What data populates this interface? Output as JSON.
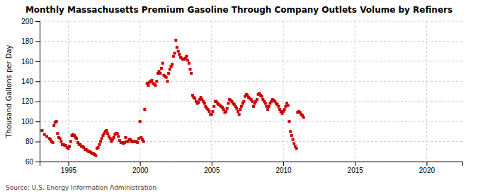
{
  "chart_data": {
    "type": "scatter",
    "title": "Monthly Massachusetts Premium Gasoline Through Company Outlets Volume by Refiners",
    "ylabel": "Thousand Gallons per Day",
    "annotation": "Source: U.S. Energy Information Administration",
    "color": "#cc0000",
    "marker": "square",
    "grid": true,
    "xlim": [
      1993.0,
      2022.5
    ],
    "ylim": [
      60,
      200
    ],
    "xticks": [
      1995,
      2000,
      2005,
      2010,
      2015,
      2020
    ],
    "yticks": [
      60,
      80,
      100,
      120,
      140,
      160,
      180,
      200
    ],
    "x": [
      1993.17,
      1993.33,
      1993.5,
      1993.67,
      1993.75,
      1993.83,
      1993.92,
      1994.0,
      1994.08,
      1994.17,
      1994.25,
      1994.33,
      1994.42,
      1994.5,
      1994.58,
      1994.67,
      1994.75,
      1994.83,
      1994.92,
      1995.0,
      1995.08,
      1995.17,
      1995.25,
      1995.33,
      1995.42,
      1995.5,
      1995.58,
      1995.67,
      1995.75,
      1995.83,
      1995.92,
      1996.0,
      1996.08,
      1996.17,
      1996.25,
      1996.33,
      1996.42,
      1996.5,
      1996.58,
      1996.67,
      1996.75,
      1996.83,
      1996.92,
      1997.0,
      1997.08,
      1997.17,
      1997.25,
      1997.33,
      1997.42,
      1997.5,
      1997.58,
      1997.67,
      1997.75,
      1997.83,
      1997.92,
      1998.0,
      1998.08,
      1998.17,
      1998.25,
      1998.33,
      1998.42,
      1998.5,
      1998.58,
      1998.67,
      1998.75,
      1998.83,
      1998.92,
      1999.0,
      1999.08,
      1999.17,
      1999.25,
      1999.33,
      1999.42,
      1999.5,
      1999.58,
      1999.67,
      1999.75,
      1999.83,
      1999.92,
      2000.0,
      2000.08,
      2000.17,
      2000.25,
      2000.33,
      2000.5,
      2000.58,
      2000.67,
      2000.75,
      2000.83,
      2000.92,
      2001.0,
      2001.08,
      2001.17,
      2001.25,
      2001.33,
      2001.42,
      2001.5,
      2001.58,
      2001.67,
      2001.75,
      2001.83,
      2001.92,
      2002.0,
      2002.08,
      2002.17,
      2002.25,
      2002.33,
      2002.42,
      2002.5,
      2002.58,
      2002.67,
      2002.75,
      2002.83,
      2002.92,
      2003.0,
      2003.08,
      2003.17,
      2003.25,
      2003.33,
      2003.42,
      2003.5,
      2003.58,
      2003.67,
      2003.75,
      2003.83,
      2003.92,
      2004.0,
      2004.08,
      2004.17,
      2004.25,
      2004.33,
      2004.42,
      2004.5,
      2004.58,
      2004.67,
      2004.75,
      2004.83,
      2004.92,
      2005.0,
      2005.08,
      2005.17,
      2005.25,
      2005.33,
      2005.42,
      2005.5,
      2005.58,
      2005.67,
      2005.75,
      2005.83,
      2005.92,
      2006.0,
      2006.08,
      2006.17,
      2006.25,
      2006.33,
      2006.42,
      2006.5,
      2006.58,
      2006.67,
      2006.75,
      2006.83,
      2006.92,
      2007.0,
      2007.08,
      2007.17,
      2007.25,
      2007.33,
      2007.42,
      2007.5,
      2007.58,
      2007.67,
      2007.75,
      2007.83,
      2007.92,
      2008.0,
      2008.08,
      2008.17,
      2008.25,
      2008.33,
      2008.42,
      2008.5,
      2008.58,
      2008.67,
      2008.75,
      2008.83,
      2008.92,
      2009.0,
      2009.08,
      2009.17,
      2009.25,
      2009.33,
      2009.42,
      2009.5,
      2009.58,
      2009.67,
      2009.75,
      2009.83,
      2009.92,
      2010.0,
      2010.08,
      2010.17,
      2010.25,
      2010.33,
      2010.42,
      2010.5,
      2010.58,
      2010.67,
      2010.75,
      2010.83,
      2010.92,
      2011.0,
      2011.08,
      2011.17,
      2011.25,
      2011.33,
      2011.42
    ],
    "values": [
      91,
      87,
      85,
      83,
      82,
      80,
      79,
      96,
      99,
      100,
      88,
      84,
      83,
      80,
      77,
      77,
      76,
      76,
      74,
      73,
      75,
      80,
      86,
      87,
      86,
      84,
      83,
      79,
      77,
      77,
      75,
      75,
      74,
      72,
      72,
      71,
      70,
      70,
      69,
      68,
      68,
      67,
      66,
      73,
      74,
      77,
      80,
      83,
      86,
      88,
      90,
      91,
      88,
      85,
      83,
      80,
      82,
      84,
      87,
      88,
      88,
      85,
      81,
      79,
      79,
      78,
      79,
      84,
      80,
      80,
      82,
      82,
      80,
      80,
      80,
      80,
      80,
      79,
      83,
      100,
      84,
      82,
      80,
      112,
      138,
      136,
      139,
      140,
      141,
      138,
      137,
      136,
      140,
      148,
      150,
      148,
      153,
      158,
      146,
      145,
      144,
      140,
      148,
      152,
      155,
      157,
      165,
      168,
      181,
      174,
      170,
      167,
      164,
      163,
      162,
      162,
      163,
      165,
      161,
      158,
      152,
      148,
      126,
      124,
      123,
      120,
      118,
      119,
      122,
      124,
      122,
      120,
      118,
      115,
      113,
      112,
      110,
      107,
      107,
      110,
      115,
      120,
      120,
      118,
      117,
      116,
      115,
      114,
      112,
      109,
      110,
      113,
      118,
      122,
      121,
      120,
      118,
      117,
      115,
      113,
      110,
      107,
      112,
      115,
      118,
      120,
      125,
      127,
      126,
      124,
      123,
      122,
      120,
      115,
      118,
      120,
      122,
      127,
      128,
      126,
      125,
      122,
      120,
      118,
      115,
      112,
      115,
      118,
      120,
      122,
      121,
      120,
      118,
      117,
      115,
      112,
      110,
      108,
      110,
      112,
      115,
      118,
      116,
      100,
      90,
      86,
      82,
      78,
      75,
      73,
      109,
      110,
      109,
      107,
      106,
      104
    ]
  }
}
